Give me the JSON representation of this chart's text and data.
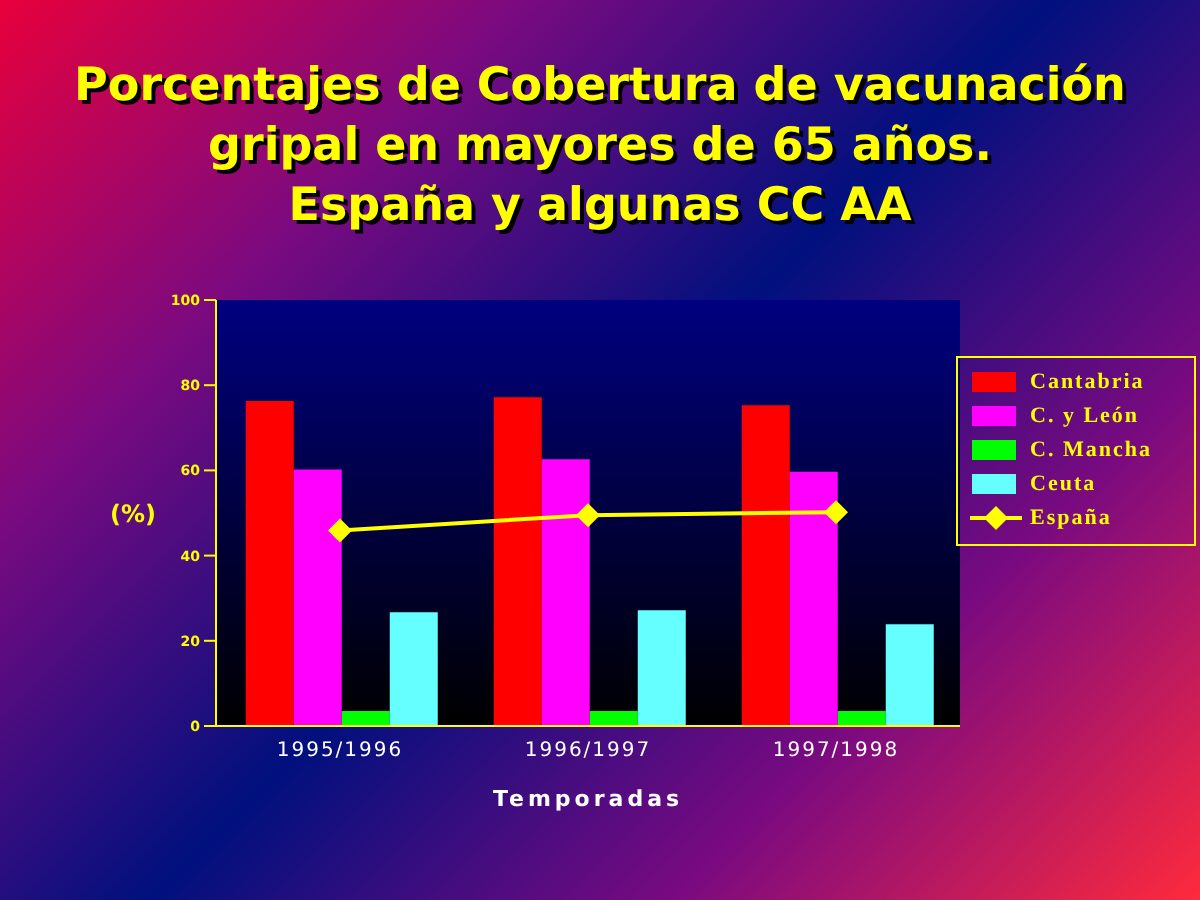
{
  "chart_data": {
    "type": "bar",
    "title": "Porcentajes de Cobertura de vacunación gripal en mayores de 65 años.\nEspaña y algunas CC AA",
    "xlabel": "Temporadas",
    "ylabel": "(%)",
    "categories": [
      "1995/1996",
      "1996/1997",
      "1997/1998"
    ],
    "ylim": [
      0,
      100
    ],
    "yticks": [
      0,
      20,
      40,
      60,
      80,
      100
    ],
    "legend": "right",
    "series": [
      {
        "name": "Cantabria",
        "color": "#ff0000",
        "values": [
          76.3,
          77.2,
          75.3
        ]
      },
      {
        "name": "C. y León",
        "color": "#ff00ff",
        "values": [
          60.2,
          62.6,
          59.7
        ]
      },
      {
        "name": "C. Mancha",
        "color": "#00ff00",
        "values": [
          3.5,
          3.5,
          3.5
        ]
      },
      {
        "name": "Ceuta",
        "color": "#66ffff",
        "values": [
          26.7,
          27.2,
          23.9
        ]
      },
      {
        "name": "España",
        "color": "#ffff00",
        "type": "line",
        "marker": "diamond",
        "values": [
          45.9,
          49.5,
          50.2
        ]
      }
    ]
  }
}
